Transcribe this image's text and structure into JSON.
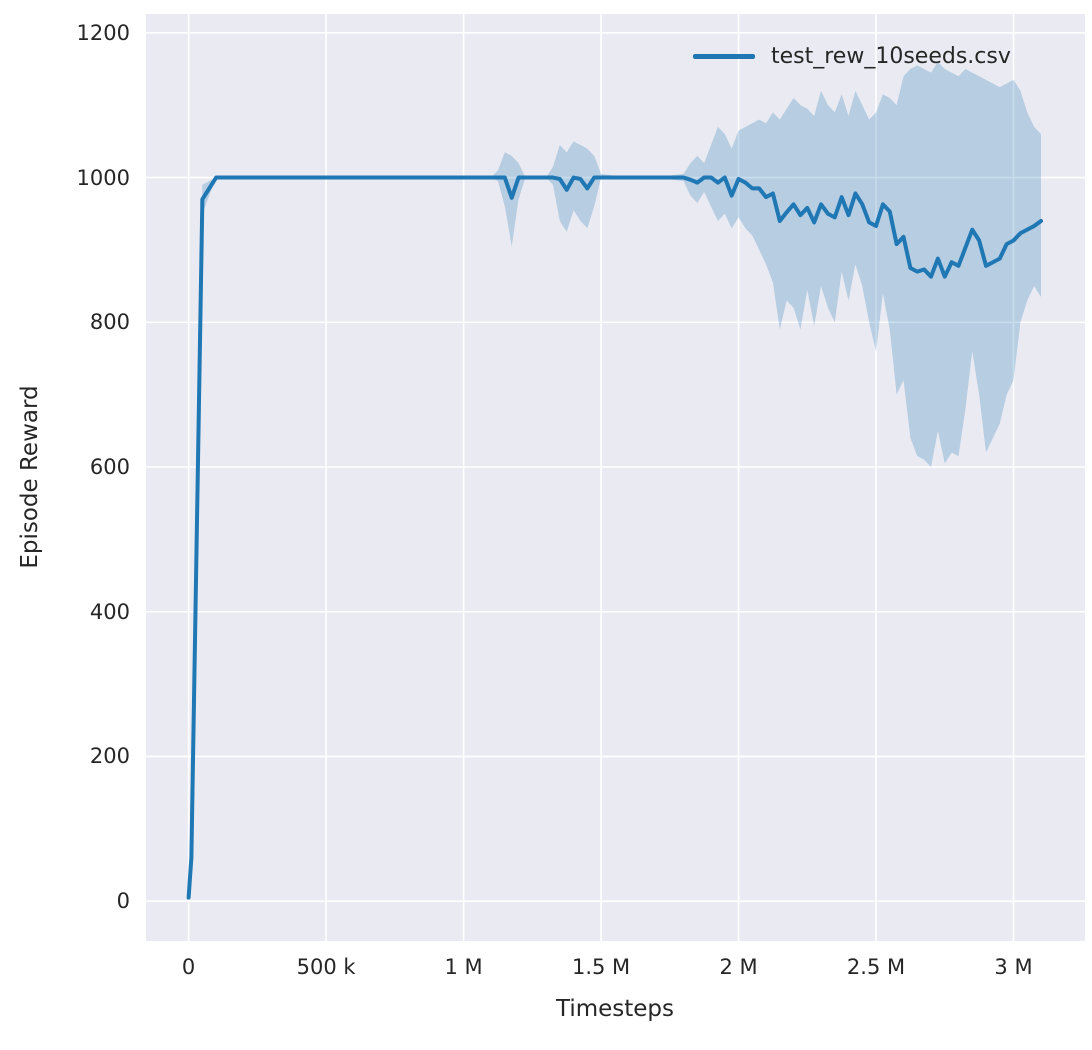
{
  "figure": {
    "xlabel": "Timesteps",
    "ylabel": "Episode Reward"
  },
  "legend": {
    "entries": [
      {
        "label": "test_rew_10seeds.csv",
        "color": "#1f77b4"
      }
    ]
  },
  "colors": {
    "background": "#ffffff",
    "plot_background": "#eaeaf2",
    "grid": "#ffffff",
    "line": "#1f77b4",
    "band_alpha": 0.25,
    "text": "#262626"
  },
  "chart_data": {
    "type": "line",
    "title": "",
    "xlabel": "Timesteps",
    "ylabel": "Episode Reward",
    "legend": [
      "test_rew_10seeds.csv"
    ],
    "legend_position": "upper right",
    "grid": true,
    "x_units": "millions of timesteps",
    "xlim": [
      -0.155,
      3.26
    ],
    "ylim": [
      -55,
      1226
    ],
    "x_ticks": {
      "values": [
        0,
        0.5,
        1,
        1.5,
        2,
        2.5,
        3
      ],
      "labels": [
        "0",
        "500 k",
        "1 M",
        "1.5 M",
        "2 M",
        "2.5 M",
        "3 M"
      ]
    },
    "y_ticks": {
      "values": [
        0,
        200,
        400,
        600,
        800,
        1000,
        1200
      ],
      "labels": [
        "0",
        "200",
        "400",
        "600",
        "800",
        "1000",
        "1200"
      ]
    },
    "series": [
      {
        "name": "test_rew_10seeds.csv",
        "x": [
          0,
          0.01,
          0.05,
          0.1,
          0.3,
          0.6,
          0.9,
          1.1,
          1.125,
          1.15,
          1.175,
          1.2,
          1.225,
          1.3,
          1.325,
          1.35,
          1.375,
          1.4,
          1.425,
          1.45,
          1.475,
          1.5,
          1.6,
          1.7,
          1.8,
          1.825,
          1.85,
          1.875,
          1.9,
          1.925,
          1.95,
          1.975,
          2.0,
          2.025,
          2.05,
          2.075,
          2.1,
          2.125,
          2.15,
          2.175,
          2.2,
          2.225,
          2.25,
          2.275,
          2.3,
          2.325,
          2.35,
          2.375,
          2.4,
          2.425,
          2.45,
          2.475,
          2.5,
          2.525,
          2.55,
          2.575,
          2.6,
          2.625,
          2.65,
          2.675,
          2.7,
          2.725,
          2.75,
          2.775,
          2.8,
          2.825,
          2.85,
          2.875,
          2.9,
          2.925,
          2.95,
          2.975,
          3.0,
          3.025,
          3.05,
          3.075,
          3.1
        ],
        "mean": [
          5,
          60,
          970,
          1000,
          1000,
          1000,
          1000,
          1000,
          1000,
          1000,
          972,
          1000,
          1000,
          1000,
          1000,
          998,
          983,
          1000,
          998,
          985,
          1000,
          1000,
          1000,
          1000,
          1000,
          997,
          993,
          1000,
          1000,
          993,
          1000,
          975,
          998,
          993,
          985,
          985,
          973,
          978,
          940,
          952,
          963,
          948,
          958,
          938,
          963,
          950,
          945,
          973,
          948,
          978,
          963,
          938,
          933,
          963,
          953,
          908,
          918,
          875,
          870,
          873,
          863,
          888,
          863,
          883,
          878,
          903,
          928,
          913,
          878,
          883,
          888,
          908,
          913,
          923,
          928,
          933,
          940
        ],
        "band_low": [
          5,
          55,
          950,
          1000,
          1000,
          1000,
          1000,
          1000,
          995,
          960,
          905,
          970,
          1000,
          1000,
          990,
          940,
          925,
          955,
          940,
          930,
          960,
          1000,
          1000,
          1000,
          995,
          975,
          965,
          980,
          960,
          940,
          950,
          930,
          945,
          930,
          920,
          900,
          880,
          855,
          790,
          830,
          820,
          790,
          845,
          795,
          850,
          820,
          800,
          870,
          830,
          880,
          850,
          800,
          760,
          840,
          790,
          700,
          720,
          640,
          615,
          610,
          600,
          650,
          605,
          620,
          615,
          680,
          760,
          700,
          620,
          640,
          660,
          700,
          720,
          800,
          830,
          850,
          835
        ],
        "band_high": [
          5,
          65,
          990,
          1000,
          1000,
          1000,
          1000,
          1000,
          1010,
          1035,
          1030,
          1020,
          1000,
          1000,
          1015,
          1045,
          1035,
          1050,
          1045,
          1040,
          1030,
          1005,
          1000,
          1000,
          1005,
          1020,
          1030,
          1020,
          1045,
          1070,
          1060,
          1040,
          1065,
          1070,
          1075,
          1080,
          1075,
          1090,
          1080,
          1095,
          1110,
          1100,
          1095,
          1085,
          1120,
          1100,
          1090,
          1115,
          1085,
          1120,
          1100,
          1080,
          1090,
          1115,
          1110,
          1100,
          1140,
          1150,
          1155,
          1150,
          1145,
          1160,
          1150,
          1145,
          1140,
          1150,
          1145,
          1140,
          1135,
          1130,
          1125,
          1130,
          1135,
          1120,
          1090,
          1070,
          1060
        ]
      }
    ]
  }
}
